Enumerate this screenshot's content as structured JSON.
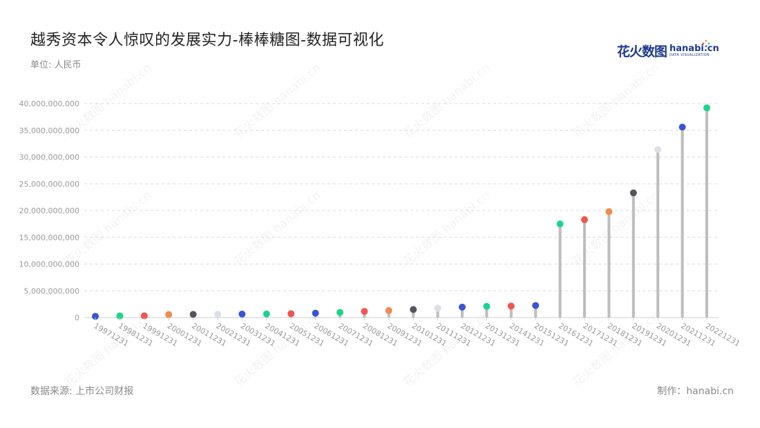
{
  "title": "越秀资本令人惊叹的发展实力-棒棒糖图-数据可视化",
  "unit_label": "单位: 人民币",
  "source_label": "数据来源: 上市公司财报",
  "maker_label": "制作：hanabi.cn",
  "logo": {
    "cn": "花火数图",
    "en": "hanabi.cn",
    "sub": "DATA VISUALIZATION"
  },
  "watermark_text": "花火数图 hanabi.cn",
  "colors": {
    "stem": "#bdbdbd",
    "grid": "#d9d9d9",
    "axis_text": "#999999",
    "palette": [
      "#3b54d6",
      "#1ad58f",
      "#f05650",
      "#f38a4e",
      "#555560",
      "#dcdfe8"
    ]
  },
  "chart_data": {
    "type": "lollipop",
    "title": "越秀资本令人惊叹的发展实力-棒棒糖图-数据可视化",
    "ylabel": "单位: 人民币",
    "ylim": [
      0,
      40000000000
    ],
    "yticks": [
      0,
      5000000000,
      10000000000,
      15000000000,
      20000000000,
      25000000000,
      30000000000,
      35000000000,
      40000000000
    ],
    "ytick_labels": [
      "0",
      "5,000,000,000",
      "10,000,000,000",
      "15,000,000,000",
      "20,000,000,000",
      "25,000,000,000",
      "30,000,000,000",
      "35,000,000,000",
      "40,000,000,000"
    ],
    "grid": true,
    "categories": [
      "19971231",
      "19981231",
      "19991231",
      "20001231",
      "20011231",
      "20021231",
      "20031231",
      "20041231",
      "20051231",
      "20061231",
      "20071231",
      "20081231",
      "20091231",
      "20101231",
      "20111231",
      "20121231",
      "20131231",
      "20141231",
      "20151231",
      "20161231",
      "20171231",
      "20181231",
      "20191231",
      "20201231",
      "20211231",
      "20221231"
    ],
    "values": [
      230000000,
      300000000,
      320000000,
      560000000,
      600000000,
      610000000,
      650000000,
      680000000,
      730000000,
      830000000,
      950000000,
      1150000000,
      1300000000,
      1500000000,
      1750000000,
      1950000000,
      2100000000,
      2150000000,
      2250000000,
      17500000000,
      18300000000,
      19800000000,
      23300000000,
      31400000000,
      35600000000,
      39200000000
    ],
    "point_colors": [
      "#3b54d6",
      "#1ad58f",
      "#f05650",
      "#f38a4e",
      "#555560",
      "#dcdfe8",
      "#3b54d6",
      "#1ad58f",
      "#f05650",
      "#3b54d6",
      "#1ad58f",
      "#f05650",
      "#f38a4e",
      "#555560",
      "#dcdfe8",
      "#3b54d6",
      "#1ad58f",
      "#f05650",
      "#3b54d6",
      "#1ad58f",
      "#f05650",
      "#f38a4e",
      "#555560",
      "#dcdfe8",
      "#3b54d6",
      "#1ad58f"
    ]
  }
}
